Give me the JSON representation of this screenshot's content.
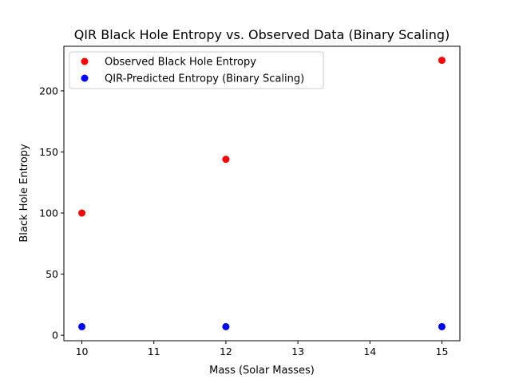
{
  "chart_data": {
    "type": "scatter",
    "title": "QIR Black Hole Entropy vs. Observed Data (Binary Scaling)",
    "xlabel": "Mass (Solar Masses)",
    "ylabel": "Black Hole Entropy",
    "xlim": [
      9.75,
      15.25
    ],
    "ylim": [
      -4.5,
      236.5
    ],
    "xticks": [
      10,
      11,
      12,
      13,
      14,
      15
    ],
    "yticks": [
      0,
      50,
      100,
      150,
      200
    ],
    "grid": false,
    "legend_position": "upper-left",
    "series": [
      {
        "name": "Observed Black Hole Entropy",
        "color": "#ff0000",
        "points": [
          {
            "x": 10,
            "y": 100
          },
          {
            "x": 12,
            "y": 144
          },
          {
            "x": 15,
            "y": 225
          }
        ]
      },
      {
        "name": "QIR-Predicted Entropy (Binary Scaling)",
        "color": "#0000ff",
        "points": [
          {
            "x": 10,
            "y": 7
          },
          {
            "x": 12,
            "y": 7
          },
          {
            "x": 15,
            "y": 7
          }
        ]
      }
    ]
  }
}
